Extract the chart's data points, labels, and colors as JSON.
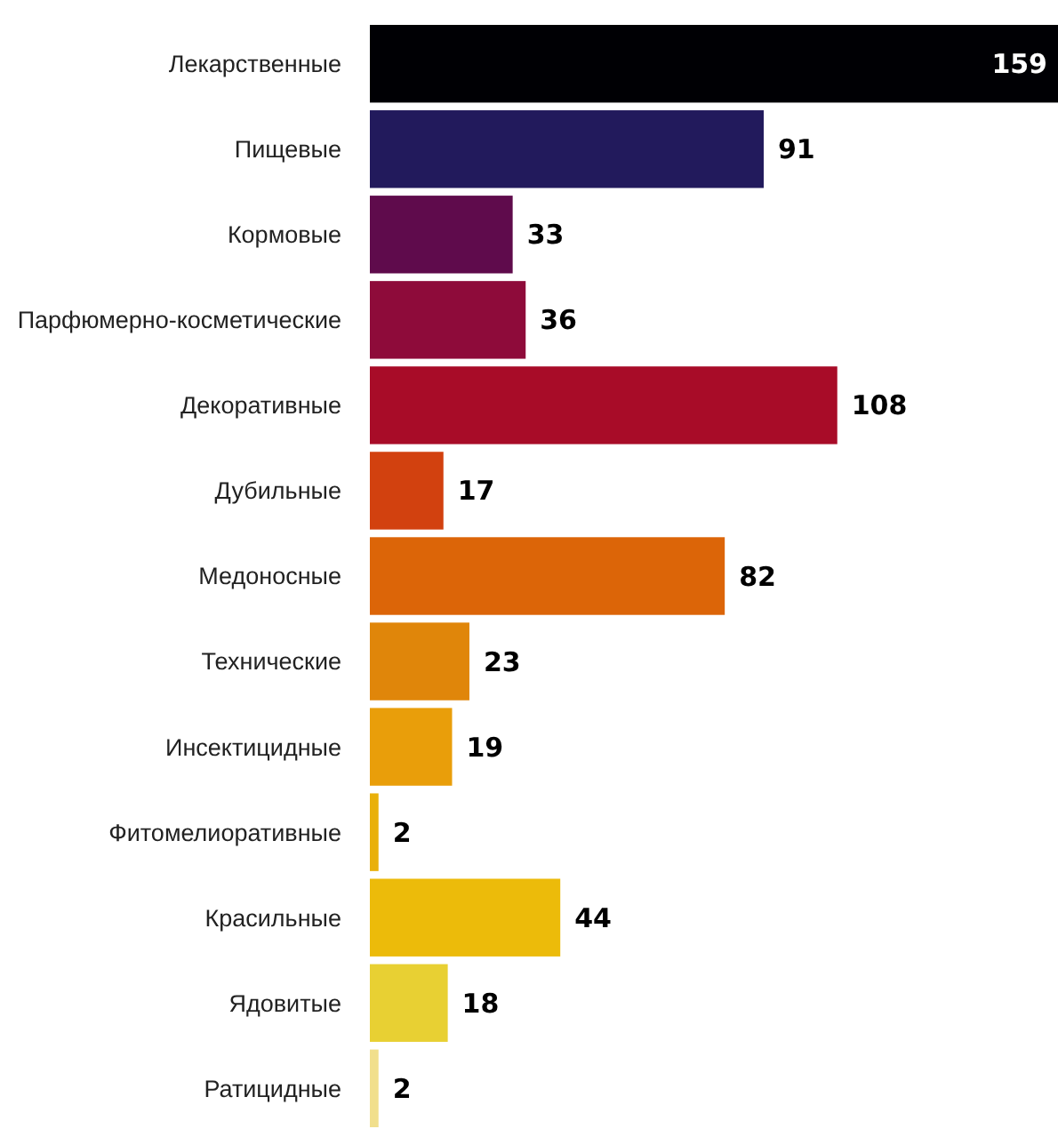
{
  "chart_data": {
    "type": "bar",
    "orientation": "horizontal",
    "data_labels": true,
    "categories": [
      "Лекарственные",
      "Пищевые",
      "Кормовые",
      "Парфюмерно-косметические",
      "Декоративные",
      "Дубильные",
      "Медоносные",
      "Технические",
      "Инсектицидные",
      "Фитомелиоративные",
      "Красильные",
      "Ядовитые",
      "Ратицидные"
    ],
    "values": [
      159,
      91,
      33,
      36,
      108,
      17,
      82,
      23,
      19,
      2,
      44,
      18,
      2
    ],
    "colors": [
      "#000004",
      "#221a5c",
      "#5f0b4c",
      "#8e0b3a",
      "#a80c28",
      "#d2410f",
      "#dc6508",
      "#e0860a",
      "#e99e0a",
      "#e9b00a",
      "#ecbb0a",
      "#e8d033",
      "#f1df8c"
    ]
  }
}
